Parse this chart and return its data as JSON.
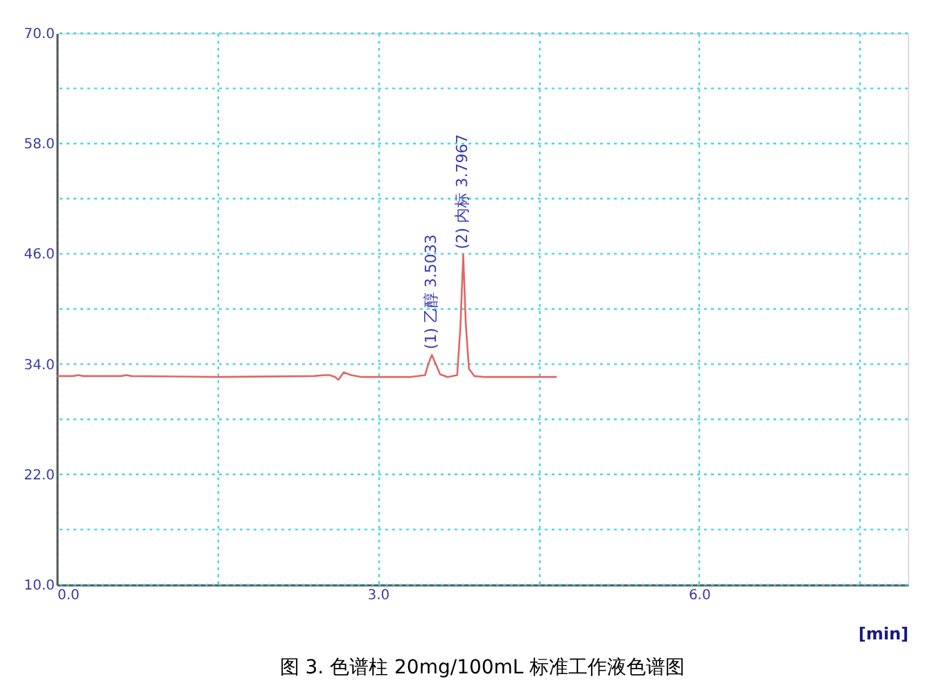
{
  "chart_data": {
    "type": "line",
    "title": "图 3. 色谱柱 20mg/100mL 标准工作液色谱图",
    "xlabel": "[min]",
    "series": [
      {
        "color": "#e06666",
        "x": [
          0,
          0.15,
          0.2,
          0.25,
          0.6,
          0.65,
          0.7,
          1.5,
          2.4,
          2.5,
          2.55,
          2.6,
          2.63,
          2.68,
          2.75,
          2.85,
          3.3,
          3.44,
          3.47,
          3.5033,
          3.54,
          3.58,
          3.65,
          3.74,
          3.77,
          3.7967,
          3.82,
          3.85,
          3.9,
          4.0,
          4.67
        ],
        "values": [
          32.7,
          32.7,
          32.8,
          32.7,
          32.7,
          32.8,
          32.7,
          32.6,
          32.7,
          32.8,
          32.8,
          32.6,
          32.3,
          33.1,
          32.8,
          32.6,
          32.6,
          32.8,
          34.0,
          35.0,
          34.0,
          32.9,
          32.6,
          32.8,
          38.0,
          45.9,
          38.5,
          33.5,
          32.7,
          32.6,
          32.6
        ]
      }
    ],
    "xlim": [
      0,
      7.95
    ],
    "ylim": [
      10,
      70
    ],
    "xticks": [
      {
        "value": 0,
        "label": "0.0"
      },
      {
        "value": 1.5,
        "label": null
      },
      {
        "value": 3,
        "label": "3.0"
      },
      {
        "value": 4.5,
        "label": null
      },
      {
        "value": 6,
        "label": "6.0"
      },
      {
        "value": 7.5,
        "label": null
      }
    ],
    "yticks": [
      {
        "value": 10,
        "label": "10.0"
      },
      {
        "value": 16,
        "label": null
      },
      {
        "value": 22,
        "label": "22.0"
      },
      {
        "value": 28,
        "label": null
      },
      {
        "value": 34,
        "label": "34.0"
      },
      {
        "value": 40,
        "label": null
      },
      {
        "value": 46,
        "label": "46.0"
      },
      {
        "value": 52,
        "label": null
      },
      {
        "value": 58,
        "label": "58.0"
      },
      {
        "value": 64,
        "label": null
      },
      {
        "value": 70,
        "label": "70.0"
      }
    ],
    "grid": true,
    "marker": "none",
    "line_style": "solid",
    "annotations": [
      {
        "text": "(1) 乙醇 3.5033",
        "x": 3.5033,
        "y": 35.0
      },
      {
        "text": "(2) 内标 3.7967",
        "x": 3.7967,
        "y": 45.9
      }
    ]
  }
}
